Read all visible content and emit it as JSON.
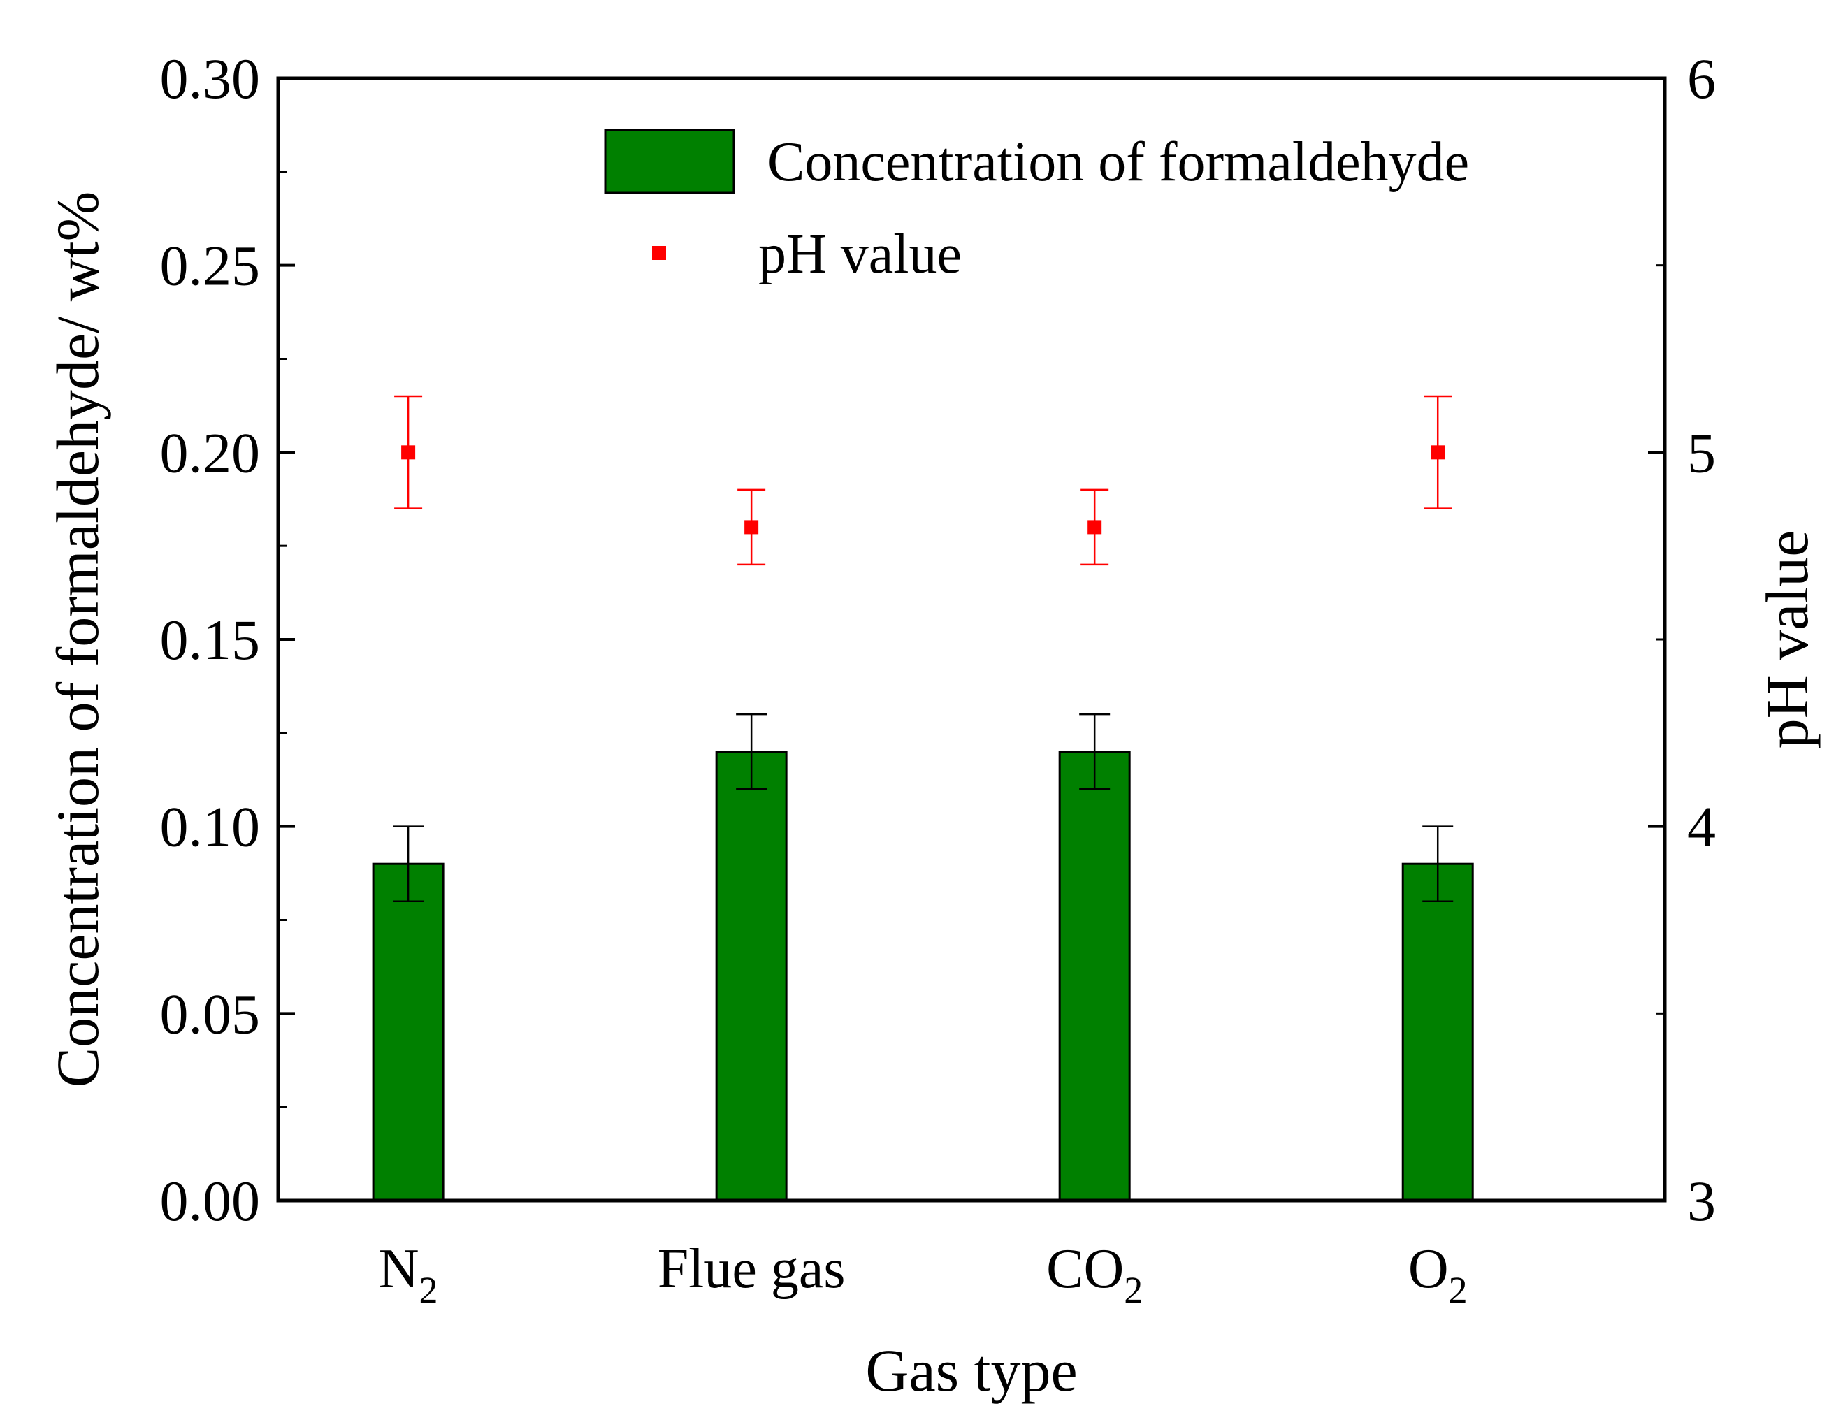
{
  "chart_data": {
    "type": "bar",
    "categories": [
      {
        "base": "N",
        "sub": "2"
      },
      {
        "base": "Flue gas",
        "sub": ""
      },
      {
        "base": "CO",
        "sub": "2"
      },
      {
        "base": "O",
        "sub": "2"
      }
    ],
    "xlabel": "Gas type",
    "ylabel": "Concentration of formaldehyde/ wt%",
    "y2label": "pH value",
    "ylim": [
      0,
      0.3
    ],
    "y2lim": [
      3,
      6
    ],
    "yticks": [
      "0.00",
      "0.05",
      "0.10",
      "0.15",
      "0.20",
      "0.25",
      "0.30"
    ],
    "y2ticks": [
      "3",
      "4",
      "5",
      "6"
    ],
    "series": [
      {
        "name": "Concentration of formaldehyde",
        "kind": "bar",
        "axis": "left",
        "color": "#008000",
        "values": [
          0.09,
          0.12,
          0.12,
          0.09
        ],
        "errors": [
          0.01,
          0.01,
          0.01,
          0.01
        ]
      },
      {
        "name": "pH value",
        "kind": "scatter",
        "axis": "right",
        "color": "#ff0000",
        "values": [
          5.0,
          4.8,
          4.8,
          5.0
        ],
        "errors": [
          0.15,
          0.1,
          0.1,
          0.15
        ]
      }
    ],
    "legend": {
      "position": "top-right",
      "entries": [
        "Concentration of formaldehyde",
        "pH value"
      ]
    },
    "grid": false
  }
}
